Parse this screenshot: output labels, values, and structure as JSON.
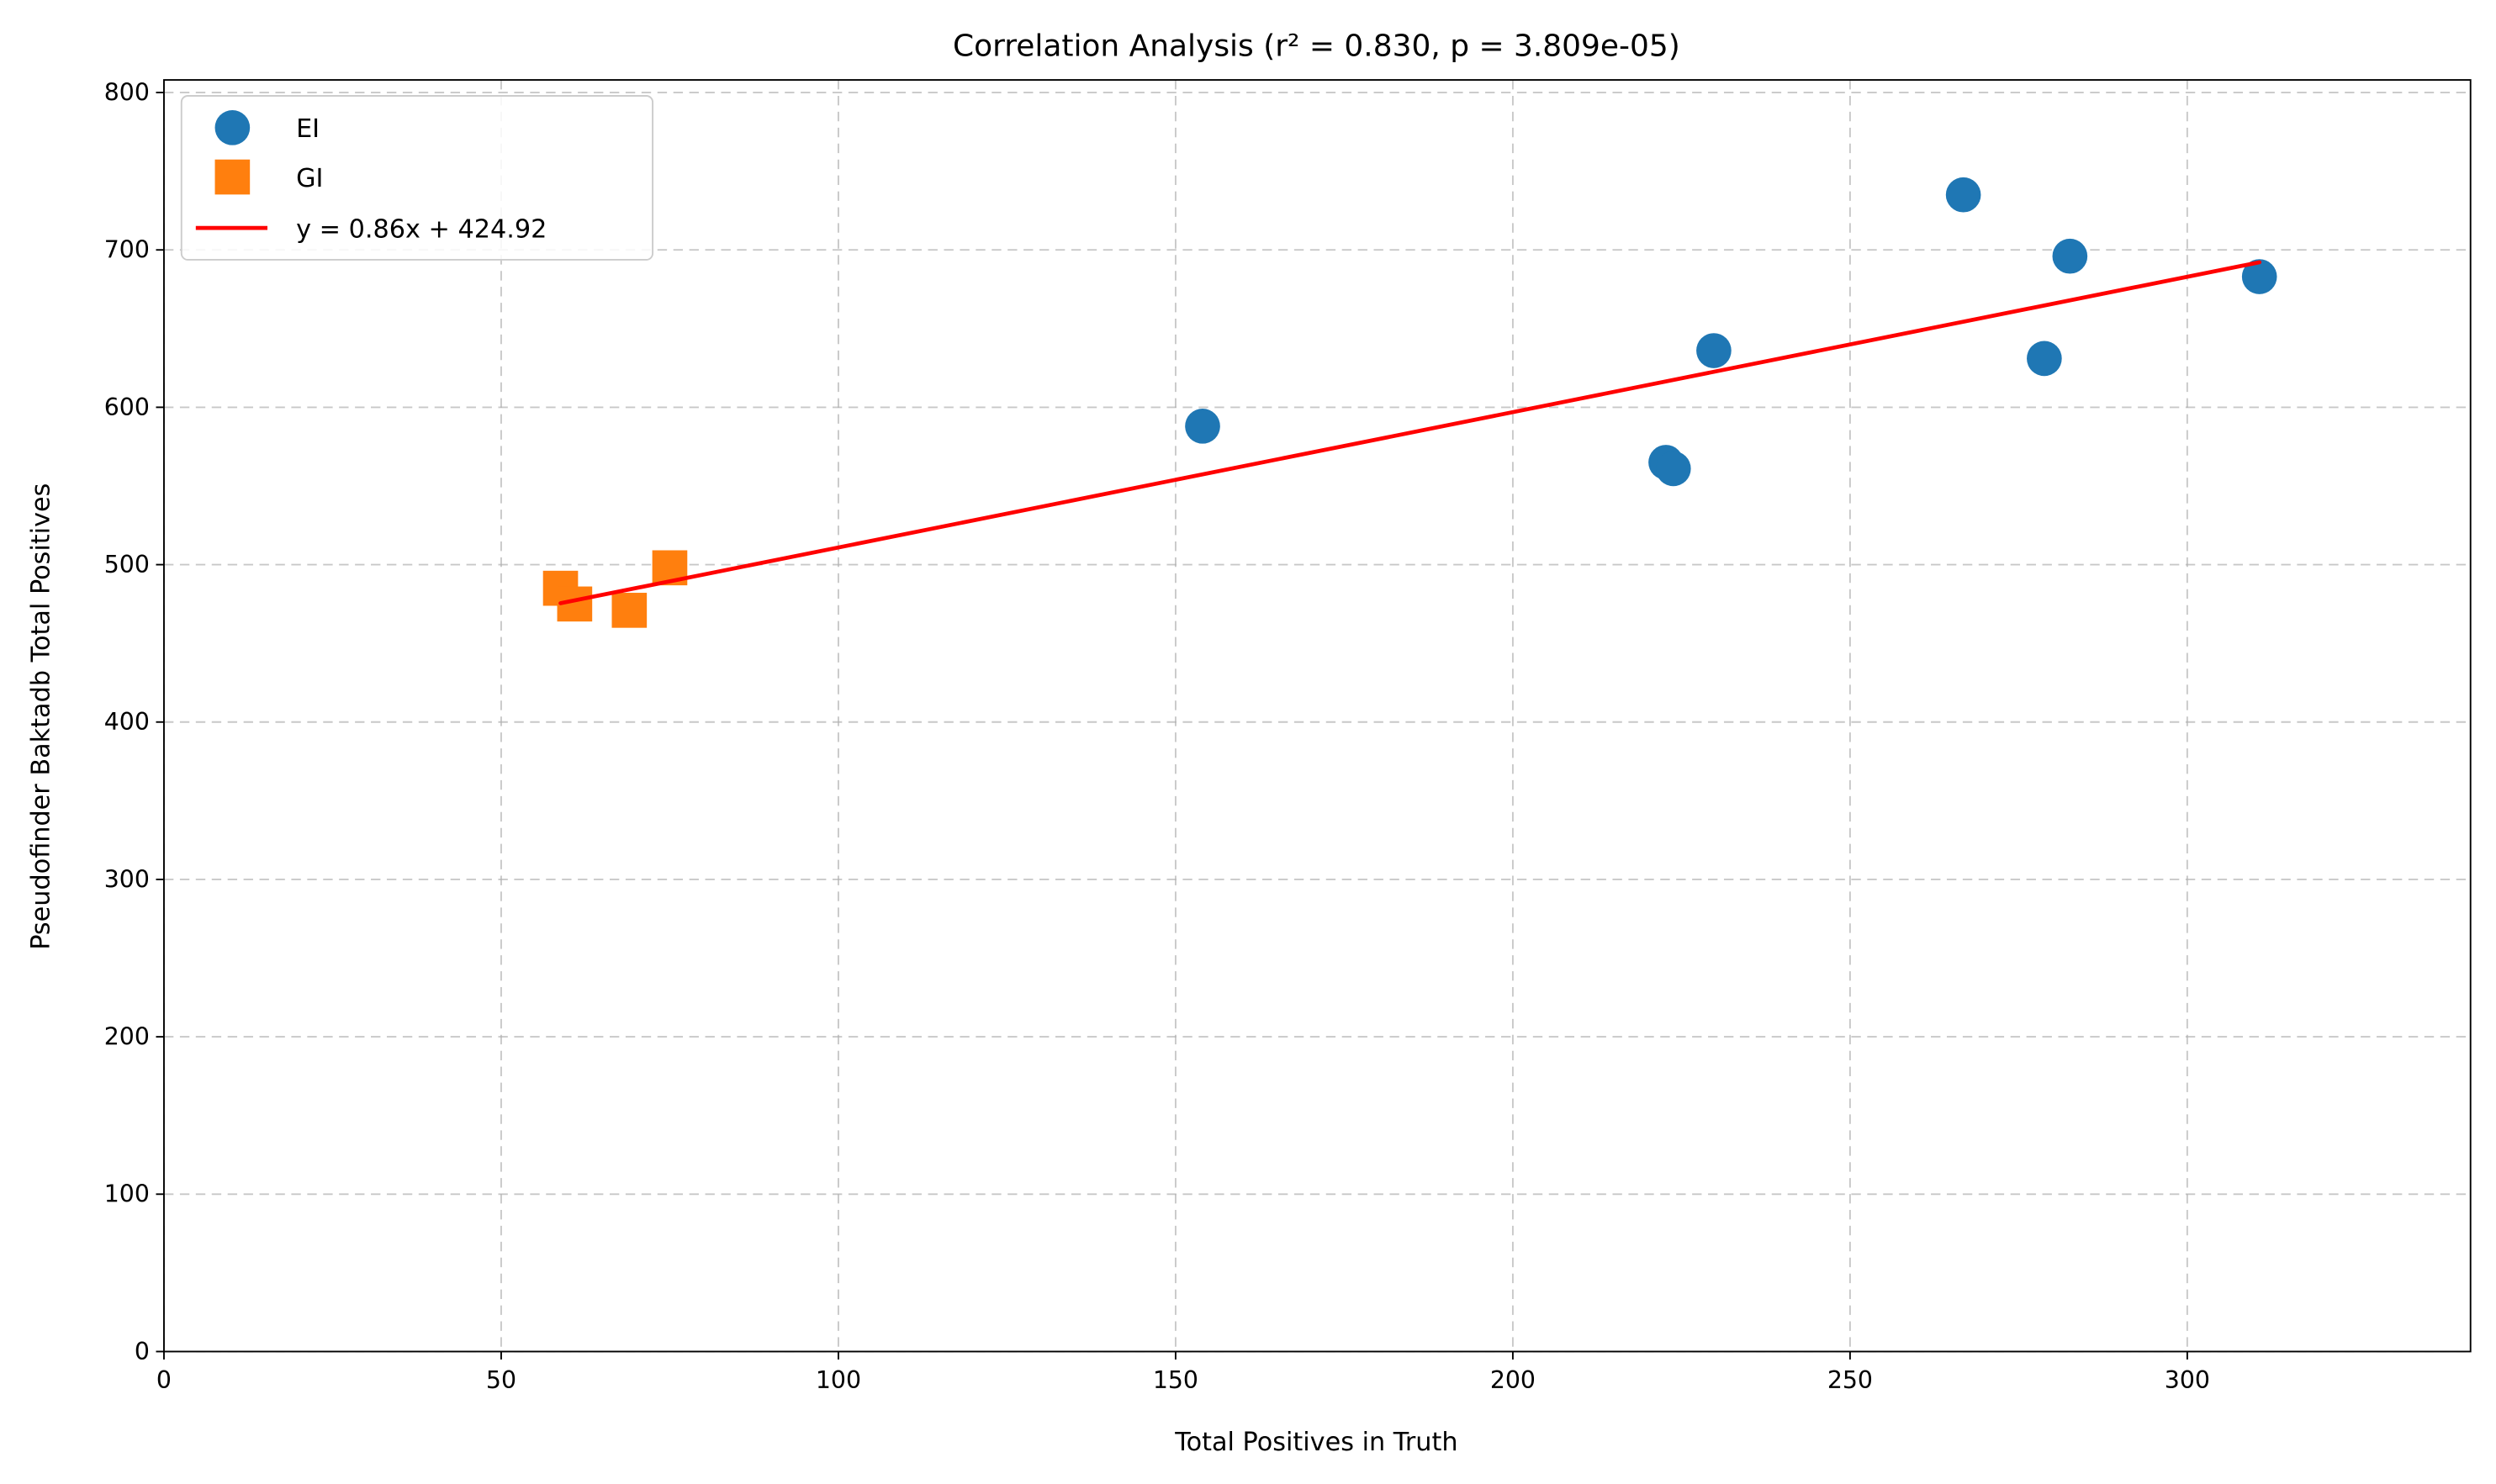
{
  "chart_data": {
    "type": "scatter",
    "title": "Correlation Analysis (r² = 0.830, p = 3.809e-05)",
    "xlabel": "Total Positives in Truth",
    "ylabel": "Pseudofinder Baktadb Total Positives",
    "xlim": [
      0,
      342
    ],
    "ylim": [
      0,
      808
    ],
    "xticks": [
      0,
      50,
      100,
      150,
      200,
      250,
      300
    ],
    "yticks": [
      0,
      100,
      200,
      300,
      400,
      500,
      600,
      700,
      800
    ],
    "grid": true,
    "legend_position": "top-left",
    "series": [
      {
        "name": "EI",
        "marker": "circle",
        "color": "#1f77b4",
        "points": [
          [
            154,
            588
          ],
          [
            222.7,
            565
          ],
          [
            223.8,
            561
          ],
          [
            229.8,
            636
          ],
          [
            266.8,
            735
          ],
          [
            278.8,
            631
          ],
          [
            282.6,
            696
          ],
          [
            310.7,
            683
          ]
        ]
      },
      {
        "name": "GI",
        "marker": "square",
        "color": "#ff7f0e",
        "points": [
          [
            58.8,
            485
          ],
          [
            60.9,
            475
          ],
          [
            69,
            471
          ],
          [
            75,
            498
          ]
        ]
      }
    ],
    "fit": {
      "name": "y = 0.86x + 424.92",
      "color": "#ff0000",
      "slope": 0.86,
      "intercept": 424.92,
      "x_range": [
        58.8,
        310.7
      ]
    }
  }
}
